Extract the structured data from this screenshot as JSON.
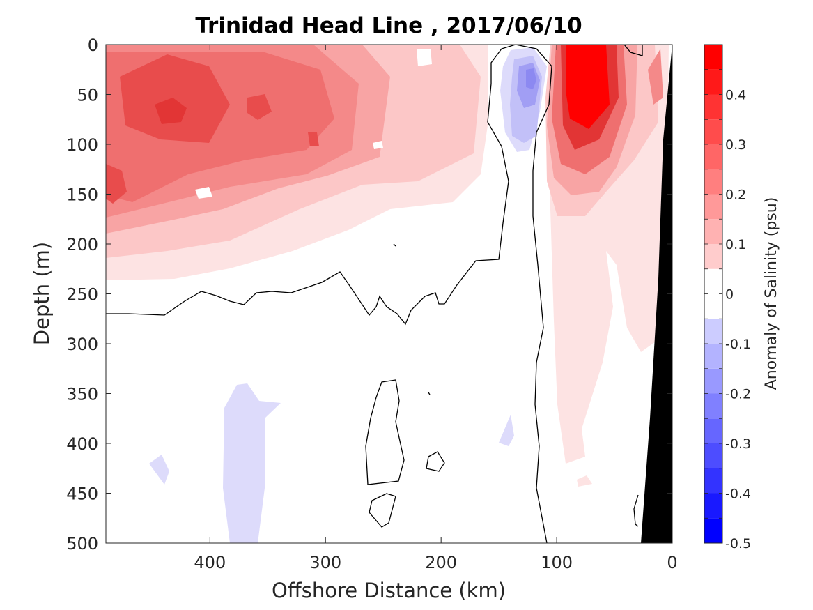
{
  "chart_data": {
    "type": "heatmap",
    "title": "Trinidad Head Line , 2017/06/10",
    "xlabel": "Offshore Distance (km)",
    "ylabel": "Depth (m)",
    "xlim": [
      490,
      0
    ],
    "ylim": [
      0,
      500
    ],
    "x_reversed": true,
    "y_reversed": true,
    "xticks": [
      400,
      300,
      200,
      100,
      0
    ],
    "yticks": [
      0,
      50,
      100,
      150,
      200,
      250,
      300,
      350,
      400,
      450,
      500
    ],
    "colorbar": {
      "label": "Anomaly of Salinity (psu)",
      "range": [
        -0.5,
        0.5
      ],
      "step": 0.05,
      "ticks": [
        0.4,
        0.3,
        0.2,
        0.1,
        0,
        -0.1,
        -0.2,
        -0.3,
        -0.4,
        -0.5
      ],
      "tick_labels": [
        "0.4",
        "0.3",
        "0.2",
        "0.1",
        "0",
        "-0.1",
        "-0.2",
        "-0.3",
        "-0.4",
        "-0.5"
      ]
    },
    "features": [
      {
        "kind": "positive_anomaly",
        "x_range": [
          490,
          160
        ],
        "depth_range": [
          0,
          240
        ],
        "peak_value": 0.35,
        "peak_at": {
          "x": 435,
          "depth": 65
        }
      },
      {
        "kind": "negative_anomaly",
        "x_range": [
          150,
          110
        ],
        "depth_range": [
          5,
          110
        ],
        "peak_value": -0.2,
        "peak_at": {
          "x": 122,
          "depth": 35
        }
      },
      {
        "kind": "positive_anomaly",
        "x_range": [
          100,
          30
        ],
        "depth_range": [
          0,
          425
        ],
        "peak_value": 0.5,
        "peak_at": {
          "x": 70,
          "depth": 60
        }
      },
      {
        "kind": "negative_anomaly",
        "x_range": [
          400,
          355
        ],
        "depth_range": [
          340,
          500
        ],
        "peak_value": -0.05
      },
      {
        "kind": "bathymetry_mask",
        "description": "continental slope shaded black near coast"
      }
    ],
    "zero_contour": true,
    "grid": false,
    "colors": {
      "positive_max": "#ff0000",
      "negative_max": "#0000ff",
      "zero": "#ffffff",
      "bathymetry": "#000000",
      "contour": "#000000",
      "axis": "#262626"
    }
  }
}
